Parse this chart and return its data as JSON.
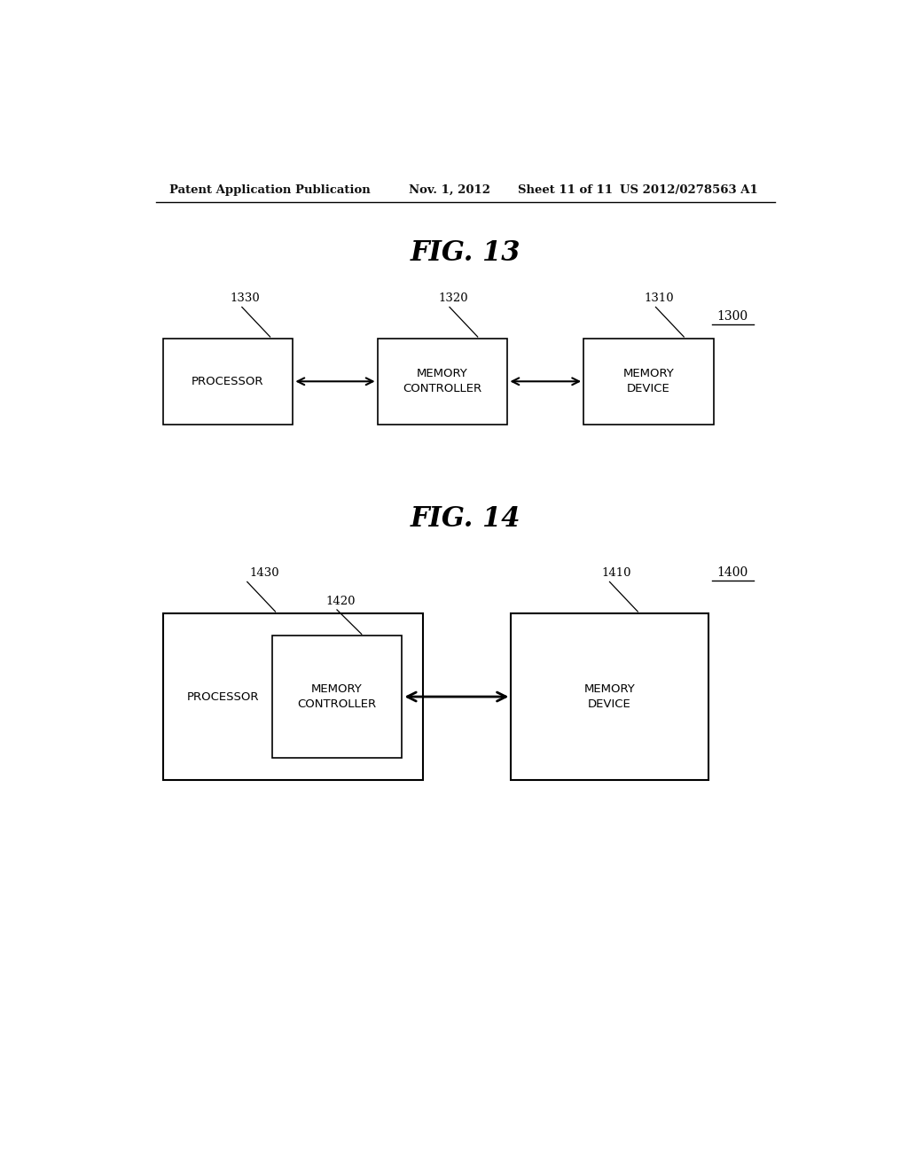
{
  "background_color": "#ffffff",
  "header_text": "Patent Application Publication",
  "header_date": "Nov. 1, 2012",
  "header_sheet": "Sheet 11 of 11",
  "header_patent": "US 2012/0278563 A1",
  "fig13_title": "FIG. 13",
  "fig14_title": "FIG. 14",
  "fig13_label": "1300",
  "fig14_label": "1400"
}
